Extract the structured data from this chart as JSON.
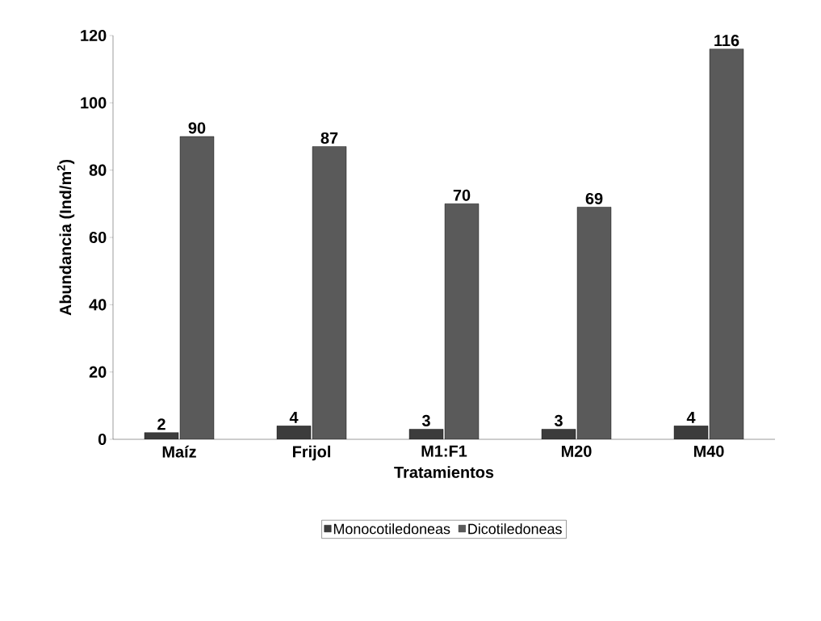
{
  "chart_data": {
    "type": "bar",
    "xlabel": "Tratamientos",
    "ylabel": "Abundancia (Ind/m$^{2}$)",
    "categories": [
      "Maíz",
      "Frijol",
      "M1:F1",
      "M20",
      "M40"
    ],
    "series": [
      {
        "name": "Monocotiledoneas",
        "color": "#3c3c3c",
        "values": [
          2,
          4,
          3,
          3,
          4
        ]
      },
      {
        "name": "Dicotiledoneas",
        "color": "#5a5a5a",
        "values": [
          90,
          87,
          70,
          69,
          116
        ]
      }
    ],
    "ylim": [
      0,
      120
    ],
    "yticks": [
      0,
      20,
      40,
      60,
      80,
      100,
      120
    ],
    "data_labels": true,
    "legend": "bottom",
    "grid": false
  }
}
